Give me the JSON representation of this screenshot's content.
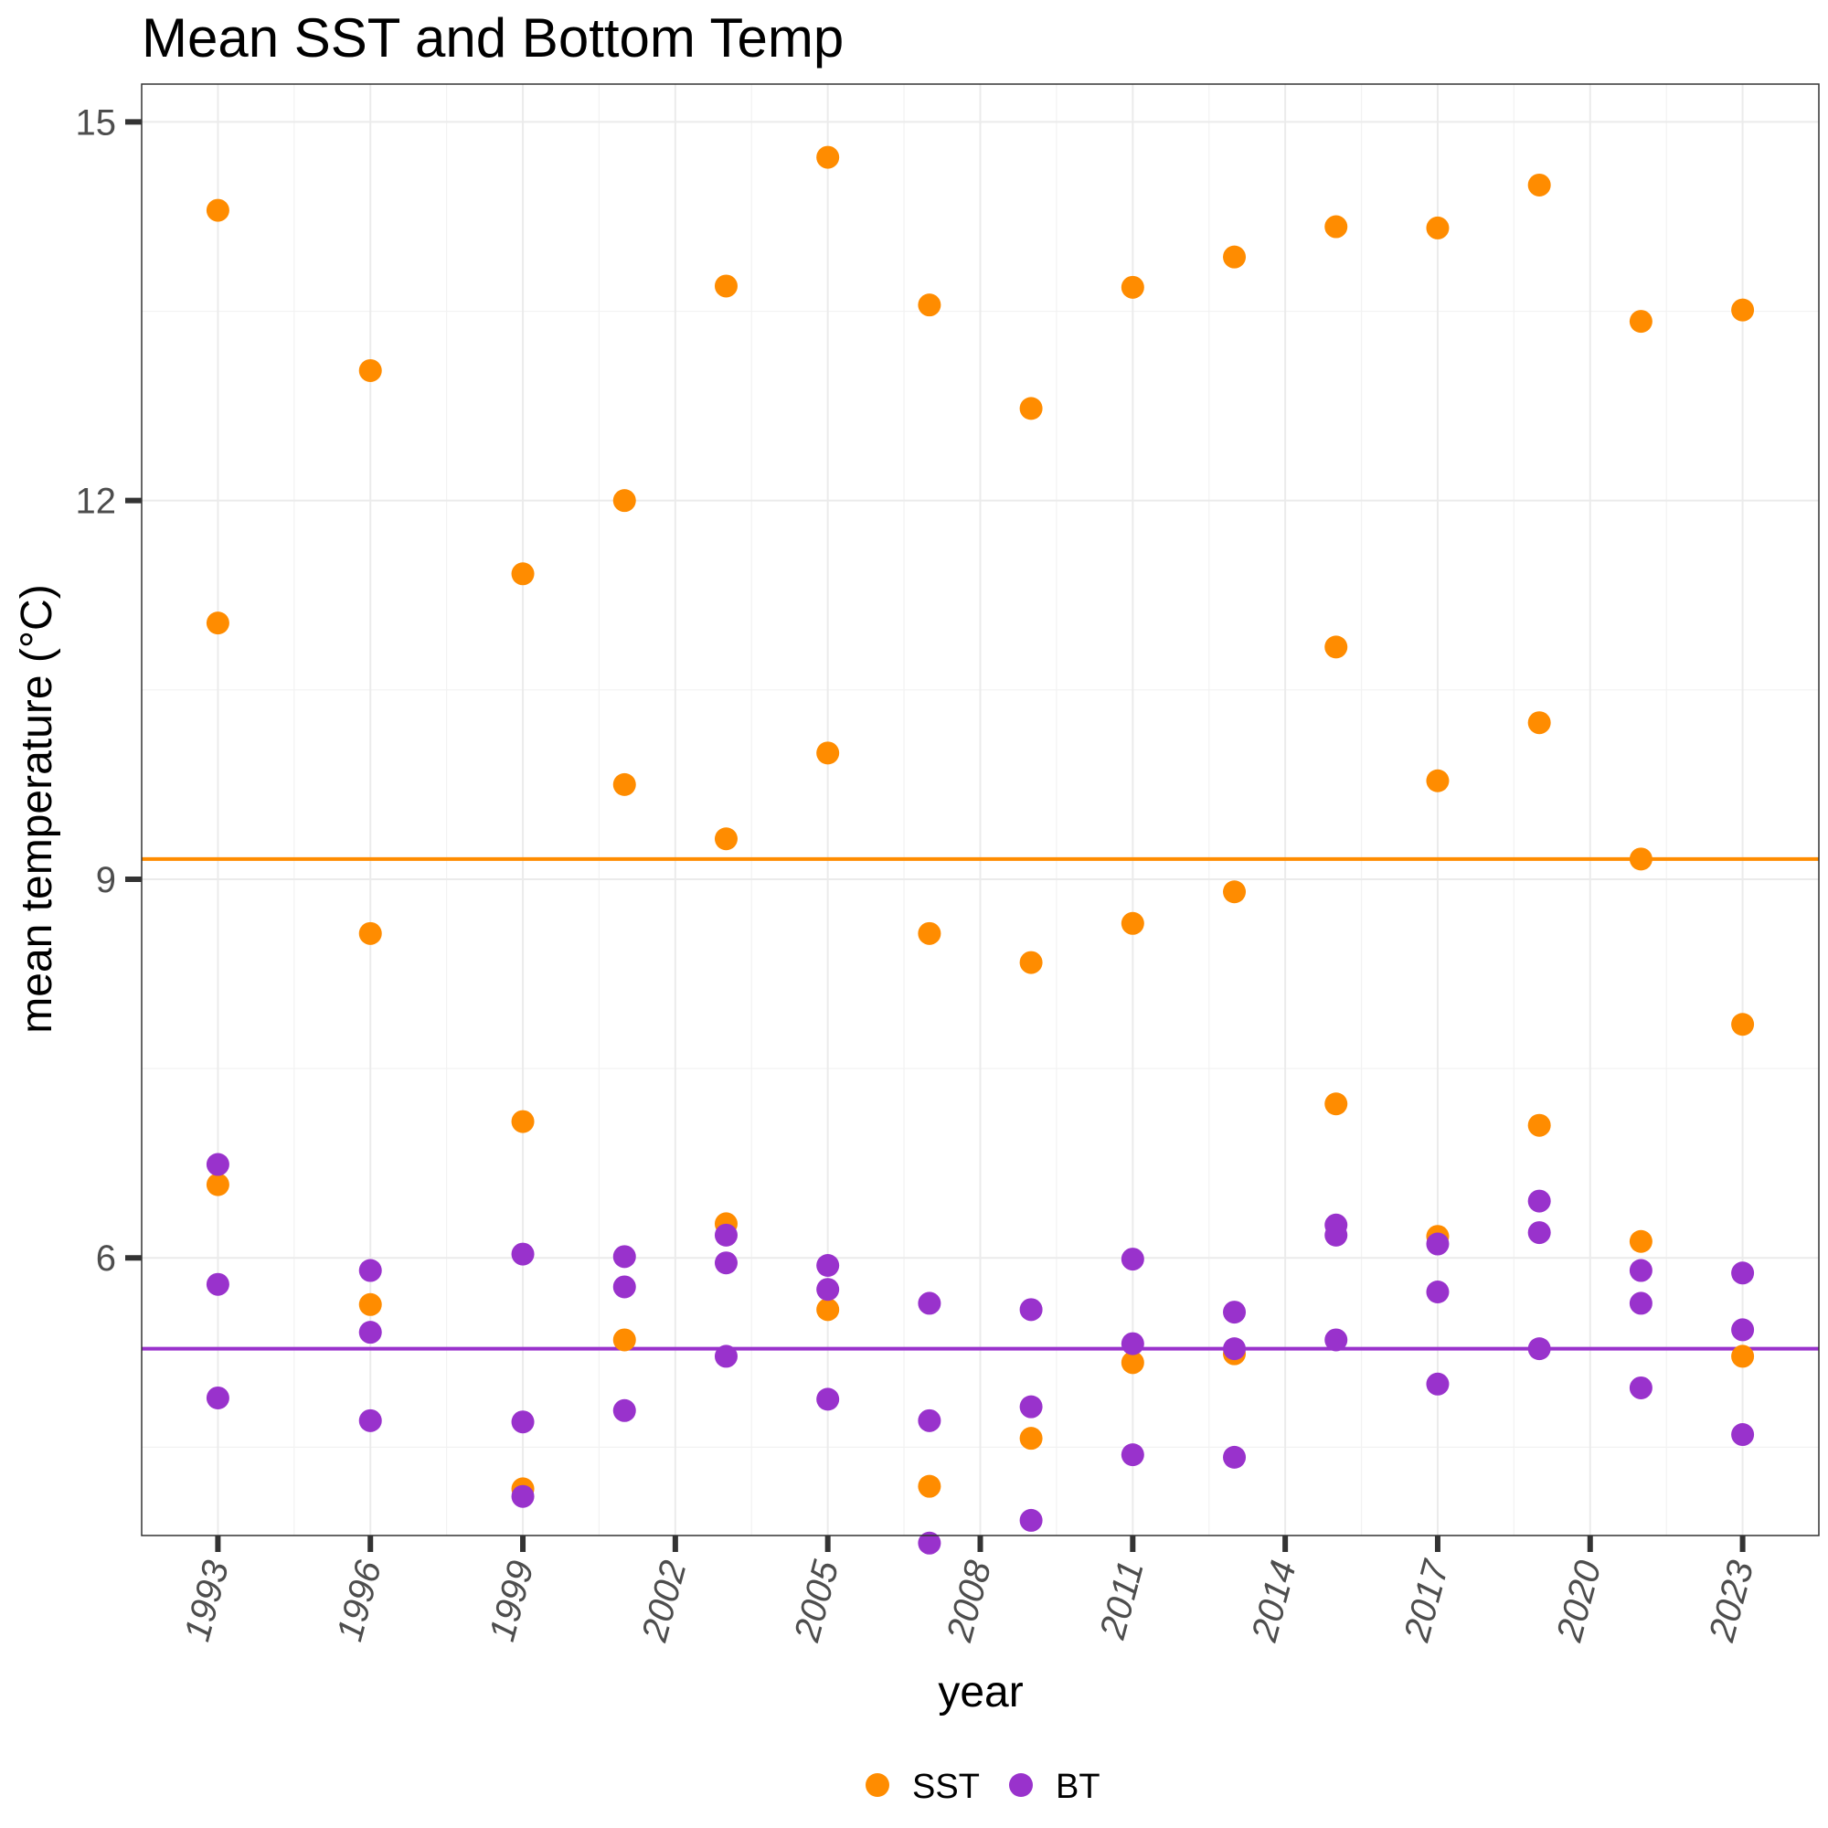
{
  "chart_data": {
    "type": "scatter",
    "title": "Mean SST and Bottom Temp",
    "xlabel": "year",
    "ylabel": "mean temperature (°C)",
    "xlim": [
      1991.5,
      2024.5
    ],
    "ylim": [
      3.8,
      15.3
    ],
    "xticks": [
      "1993",
      "1996",
      "1999",
      "2002",
      "2005",
      "2008",
      "2011",
      "2014",
      "2017",
      "2020",
      "2023"
    ],
    "yticks": [
      "6",
      "9",
      "12",
      "15"
    ],
    "grid": true,
    "legend_position": "bottom",
    "series": [
      {
        "name": "SST",
        "color": "#ff8c00",
        "mean_line": 9.16,
        "points": [
          [
            1993,
            14.3
          ],
          [
            1993,
            11.03
          ],
          [
            1993,
            6.58
          ],
          [
            1996,
            13.03
          ],
          [
            1996,
            8.57
          ],
          [
            1996,
            5.63
          ],
          [
            1999,
            11.42
          ],
          [
            1999,
            7.08
          ],
          [
            1999,
            4.17
          ],
          [
            2001,
            12.0
          ],
          [
            2001,
            9.75
          ],
          [
            2001,
            5.35
          ],
          [
            2003,
            13.7
          ],
          [
            2003,
            9.32
          ],
          [
            2003,
            6.27
          ],
          [
            2005,
            14.72
          ],
          [
            2005,
            10.0
          ],
          [
            2005,
            5.59
          ],
          [
            2007,
            13.55
          ],
          [
            2007,
            8.57
          ],
          [
            2007,
            4.19
          ],
          [
            2009,
            12.73
          ],
          [
            2009,
            8.34
          ],
          [
            2009,
            4.57
          ],
          [
            2011,
            13.69
          ],
          [
            2011,
            8.65
          ],
          [
            2011,
            5.17
          ],
          [
            2013,
            13.93
          ],
          [
            2013,
            8.9
          ],
          [
            2013,
            5.24
          ],
          [
            2015,
            14.17
          ],
          [
            2015,
            10.84
          ],
          [
            2015,
            7.22
          ],
          [
            2017,
            14.16
          ],
          [
            2017,
            9.78
          ],
          [
            2017,
            6.17
          ],
          [
            2019,
            14.5
          ],
          [
            2019,
            10.24
          ],
          [
            2019,
            7.05
          ],
          [
            2021,
            13.42
          ],
          [
            2021,
            9.16
          ],
          [
            2021,
            6.13
          ],
          [
            2023,
            13.51
          ],
          [
            2023,
            7.85
          ],
          [
            2023,
            5.22
          ]
        ]
      },
      {
        "name": "BT",
        "color": "#9932cc",
        "mean_line": 5.28,
        "points": [
          [
            1993,
            6.74
          ],
          [
            1993,
            5.79
          ],
          [
            1993,
            4.89
          ],
          [
            1996,
            5.9
          ],
          [
            1996,
            5.41
          ],
          [
            1996,
            4.71
          ],
          [
            1999,
            6.03
          ],
          [
            1999,
            4.7
          ],
          [
            1999,
            4.11
          ],
          [
            2001,
            6.01
          ],
          [
            2001,
            5.77
          ],
          [
            2001,
            4.79
          ],
          [
            2003,
            6.18
          ],
          [
            2003,
            5.96
          ],
          [
            2003,
            5.22
          ],
          [
            2005,
            5.94
          ],
          [
            2005,
            5.75
          ],
          [
            2005,
            4.88
          ],
          [
            2007,
            5.64
          ],
          [
            2007,
            4.71
          ],
          [
            2007,
            3.74
          ],
          [
            2009,
            5.59
          ],
          [
            2009,
            4.82
          ],
          [
            2009,
            3.92
          ],
          [
            2011,
            5.99
          ],
          [
            2011,
            5.32
          ],
          [
            2011,
            4.44
          ],
          [
            2013,
            5.57
          ],
          [
            2013,
            5.28
          ],
          [
            2013,
            4.42
          ],
          [
            2015,
            6.26
          ],
          [
            2015,
            6.18
          ],
          [
            2015,
            5.35
          ],
          [
            2017,
            6.11
          ],
          [
            2017,
            5.73
          ],
          [
            2017,
            5.0
          ],
          [
            2019,
            6.45
          ],
          [
            2019,
            6.2
          ],
          [
            2019,
            5.28
          ],
          [
            2021,
            5.9
          ],
          [
            2021,
            5.64
          ],
          [
            2021,
            4.97
          ],
          [
            2023,
            5.88
          ],
          [
            2023,
            5.43
          ],
          [
            2023,
            4.6
          ]
        ]
      }
    ]
  }
}
